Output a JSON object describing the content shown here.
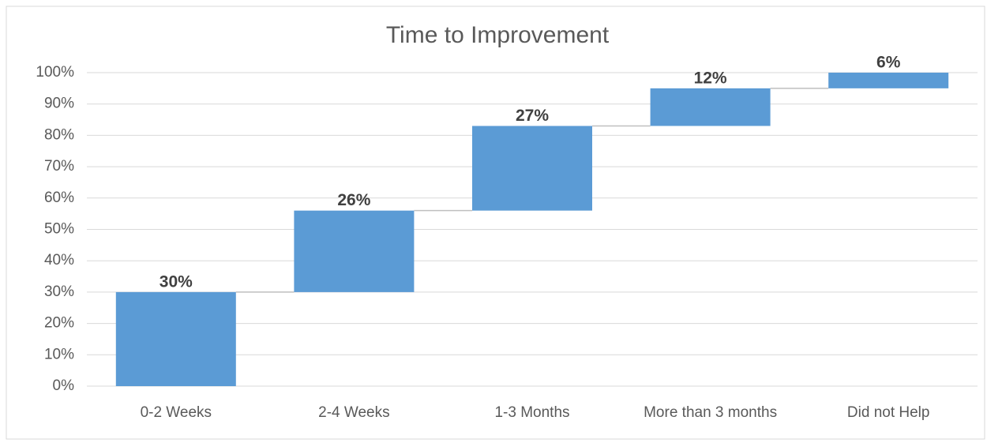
{
  "chart_data": {
    "type": "waterfall",
    "title": "Time to Improvement",
    "categories": [
      "0-2 Weeks",
      "2-4 Weeks",
      "1-3 Months",
      "More than 3 months",
      "Did not Help"
    ],
    "values": [
      30,
      26,
      27,
      12,
      6
    ],
    "value_labels": [
      "30%",
      "26%",
      "27%",
      "12%",
      "6%"
    ],
    "color": "#5b9bd5",
    "ylim": [
      0,
      100
    ],
    "yticks": [
      {
        "value": 0,
        "label": "0%"
      },
      {
        "value": 10,
        "label": "10%"
      },
      {
        "value": 20,
        "label": "20%"
      },
      {
        "value": 30,
        "label": "30%"
      },
      {
        "value": 40,
        "label": "40%"
      },
      {
        "value": 50,
        "label": "50%"
      },
      {
        "value": 60,
        "label": "60%"
      },
      {
        "value": 70,
        "label": "70%"
      },
      {
        "value": 80,
        "label": "80%"
      },
      {
        "value": 90,
        "label": "90%"
      },
      {
        "value": 100,
        "label": "100%"
      }
    ],
    "grid": true
  }
}
